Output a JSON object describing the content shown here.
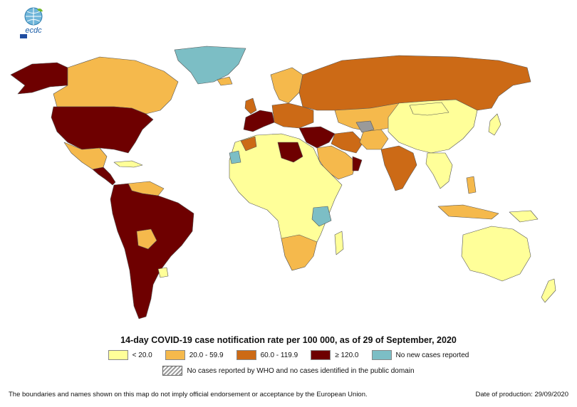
{
  "logo": {
    "text": "ecdc"
  },
  "title": "14-day COVID-19 case notification rate per 100 000, as of 29 of September, 2020",
  "legend": [
    {
      "label": "< 20.0",
      "color": "#ffff99"
    },
    {
      "label": "20.0 - 59.9",
      "color": "#f5b94c"
    },
    {
      "label": "60.0 - 119.9",
      "color": "#cc6a16"
    },
    {
      "label": "≥ 120.0",
      "color": "#6e0000"
    },
    {
      "label": "No new cases reported",
      "color": "#7cbec5"
    }
  ],
  "legend_hatch": {
    "label": "No cases reported by WHO and no cases identified in the public domain"
  },
  "footer": {
    "disclaimer": "The boundaries and names shown on this map do not imply official endorsement or acceptance by the European Union.",
    "production_date": "Date of production: 29/09/2020"
  },
  "colors": {
    "low": "#ffff99",
    "mid": "#f5b94c",
    "high": "#cc6a16",
    "very_high": "#6e0000",
    "no_new": "#7cbec5",
    "hatch": "#9a9a9a"
  }
}
